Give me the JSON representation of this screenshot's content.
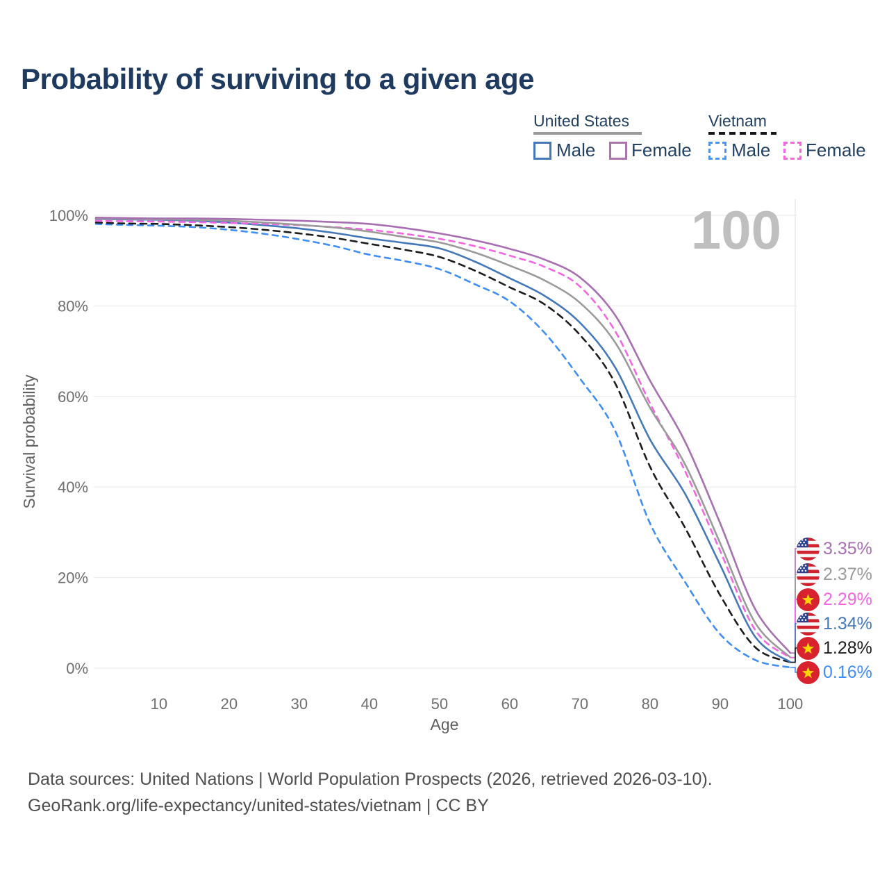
{
  "title": "Probability of surviving to a given age",
  "legend": {
    "groups": [
      {
        "label": "United States",
        "line_style": "solid",
        "underline_color": "#9a9a9a",
        "items": [
          {
            "label": "Male",
            "color": "#4478b8",
            "dashed": false
          },
          {
            "label": "Female",
            "color": "#ab74b0",
            "dashed": false
          }
        ]
      },
      {
        "label": "Vietnam",
        "line_style": "dashed",
        "underline_color": "#15181c",
        "items": [
          {
            "label": "Male",
            "color": "#4b96f3",
            "dashed": true
          },
          {
            "label": "Female",
            "color": "#f566e2",
            "dashed": true
          }
        ]
      }
    ]
  },
  "chart_data": {
    "type": "line",
    "title": "Probability of surviving to a given age",
    "xlabel": "Age",
    "ylabel": "Survival probability",
    "watermark": "100",
    "xlim": [
      1,
      101
    ],
    "ylim": [
      0,
      100
    ],
    "grid": "horizontal",
    "x_ticks": [
      10,
      20,
      30,
      40,
      50,
      60,
      70,
      80,
      90,
      100
    ],
    "y_ticks": [
      {
        "value": 0,
        "label": "0%"
      },
      {
        "value": 20,
        "label": "20%"
      },
      {
        "value": 40,
        "label": "40%"
      },
      {
        "value": 60,
        "label": "60%"
      },
      {
        "value": 80,
        "label": "80%"
      },
      {
        "value": 100,
        "label": "100%"
      }
    ],
    "ages": [
      1,
      5,
      10,
      15,
      20,
      25,
      30,
      35,
      40,
      45,
      50,
      55,
      60,
      65,
      70,
      75,
      80,
      85,
      90,
      95,
      100
    ],
    "series": [
      {
        "id": "united-states-female",
        "name": "United States — Female",
        "country": "United States",
        "sex": "Female",
        "color": "#a76fb1",
        "dashed": false,
        "flag": "us",
        "end_label": "3.35%",
        "values": [
          99.5,
          99.4,
          99.3,
          99.3,
          99.2,
          99.0,
          98.8,
          98.5,
          98.1,
          97.2,
          96.0,
          94.5,
          92.6,
          90.2,
          86.3,
          78.0,
          63.5,
          50.0,
          32.0,
          13.0,
          3.35
        ]
      },
      {
        "id": "united-states-both-sexes",
        "name": "United States — Both sexes",
        "country": "United States",
        "sex": "Both sexes",
        "color": "#9a9a9a",
        "dashed": false,
        "flag": "us",
        "end_label": "2.37%",
        "values": [
          99.3,
          99.2,
          99.1,
          99.0,
          98.8,
          98.4,
          97.9,
          97.3,
          96.4,
          95.2,
          94.0,
          91.8,
          88.9,
          85.6,
          80.7,
          72.0,
          57.5,
          45.0,
          27.6,
          10.0,
          2.37
        ]
      },
      {
        "id": "vietnam-female",
        "name": "Vietnam — Female",
        "country": "Vietnam",
        "sex": "Female",
        "color": "#f566e2",
        "dashed": true,
        "flag": "vn",
        "end_label": "2.29%",
        "values": [
          98.8,
          98.7,
          98.6,
          98.5,
          98.3,
          98.1,
          97.8,
          97.4,
          96.8,
          95.9,
          94.8,
          93.2,
          91.1,
          88.6,
          84.3,
          74.5,
          58.5,
          43.5,
          25.9,
          8.4,
          2.29
        ]
      },
      {
        "id": "united-states-male",
        "name": "United States — Male",
        "country": "United States",
        "sex": "Male",
        "color": "#4478b8",
        "dashed": false,
        "flag": "us",
        "end_label": "1.34%",
        "values": [
          99.2,
          99.1,
          99.0,
          98.8,
          98.4,
          97.8,
          97.1,
          96.1,
          94.9,
          93.9,
          92.7,
          89.8,
          86.1,
          82.2,
          76.3,
          66.5,
          50.5,
          38.5,
          22.8,
          6.9,
          1.34
        ]
      },
      {
        "id": "vietnam-both-sexes",
        "name": "Vietnam — Both sexes",
        "country": "Vietnam",
        "sex": "Both sexes",
        "color": "#1c1c1c",
        "dashed": true,
        "flag": "vn",
        "end_label": "1.28%",
        "values": [
          98.4,
          98.2,
          98.1,
          97.8,
          97.4,
          96.8,
          96.0,
          95.0,
          93.7,
          92.4,
          90.8,
          87.8,
          84.1,
          80.3,
          73.6,
          63.0,
          44.5,
          31.0,
          16.1,
          4.6,
          1.28
        ]
      },
      {
        "id": "vietnam-male",
        "name": "Vietnam — Male",
        "country": "Vietnam",
        "sex": "Male",
        "color": "#3f8ef5",
        "dashed": true,
        "flag": "vn",
        "end_label": "0.16%",
        "values": [
          98.1,
          97.9,
          97.7,
          97.4,
          96.8,
          95.9,
          94.7,
          93.2,
          91.3,
          89.9,
          88.1,
          84.8,
          81.0,
          74.0,
          64.0,
          52.5,
          32.0,
          19.0,
          7.5,
          1.8,
          0.16
        ]
      }
    ]
  },
  "footer": {
    "line1": "Data sources: United Nations | World Population Prospects (2026, retrieved 2026-03-10).",
    "line2": "GeoRank.org/life-expectancy/united-states/vietnam | CC BY"
  }
}
